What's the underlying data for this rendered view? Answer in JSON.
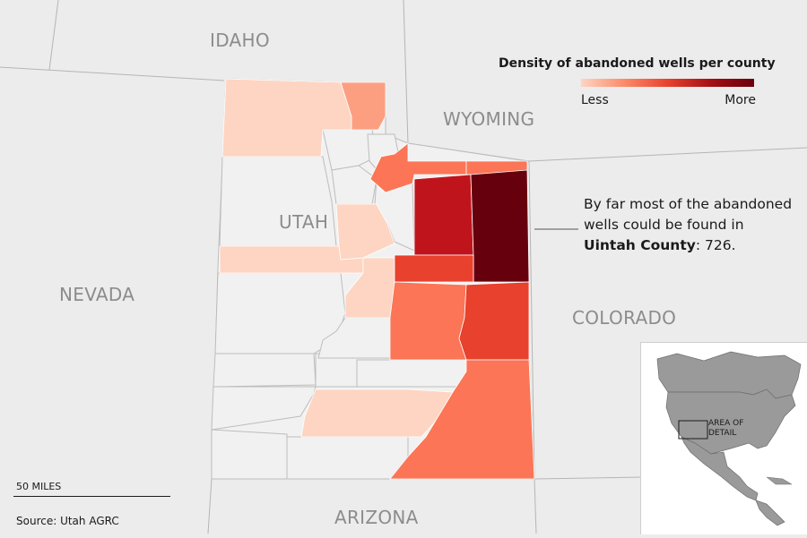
{
  "map": {
    "states": {
      "idaho": "IDAHO",
      "wyoming": "WYOMING",
      "utah": "UTAH",
      "nevada": "NEVADA",
      "colorado": "COLORADO",
      "arizona": "ARIZONA"
    },
    "colors": {
      "background": "#ececec",
      "county_empty": "#f1f1f1",
      "county_border": "#bdbdbd",
      "level_1": "#fdd5c2",
      "level_2": "#fc9f81",
      "level_3": "#fb7556",
      "level_4": "#e8412e",
      "level_5": "#c0141d",
      "level_6": "#67000d"
    }
  },
  "legend": {
    "title": "Density of abandoned wells per county",
    "less": "Less",
    "more": "More",
    "gradient_start": "#fdd5c2",
    "gradient_end": "#67000d"
  },
  "annotation": {
    "text_before": "By far most of the abandoned wells could be found in ",
    "county": "Uintah County",
    "text_after": ": 726."
  },
  "scale": {
    "label": "50 MILES"
  },
  "source": "Source: Utah AGRC",
  "inset": {
    "label": "AREA OF DETAIL"
  }
}
